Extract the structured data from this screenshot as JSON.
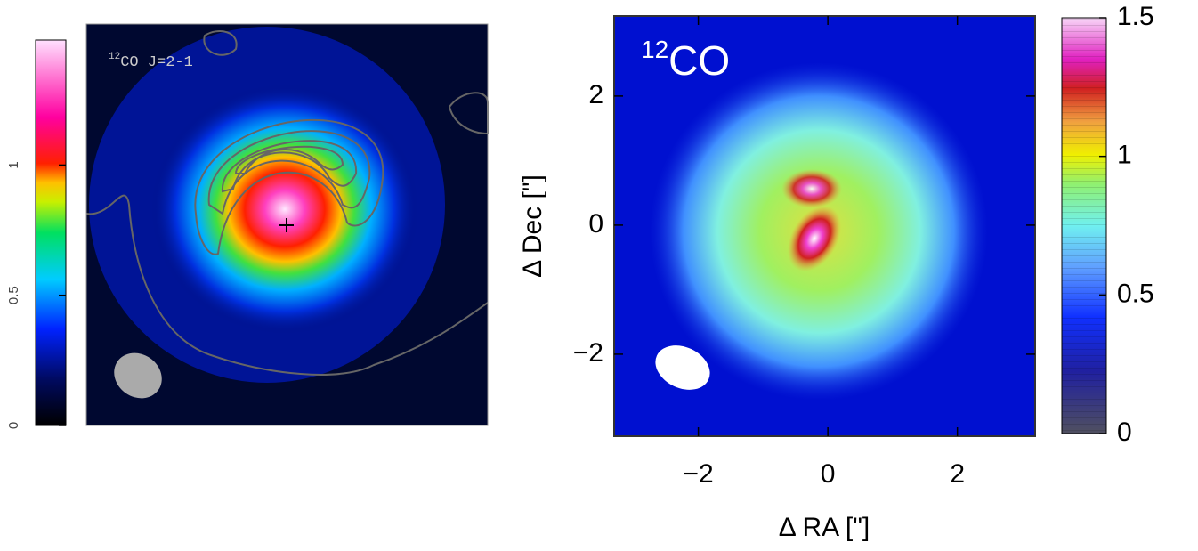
{
  "chart_data": [
    {
      "type": "map",
      "title_sup": "12",
      "title": "CO J=2-1",
      "colorbar": {
        "clim": [
          0,
          1.48
        ],
        "ticks": [
          0,
          0.5,
          1
        ]
      }
    },
    {
      "type": "map",
      "title_sup": "12",
      "title": "CO",
      "xlabel": "Δ RA [\"]",
      "ylabel": "Δ Dec [\"]",
      "xlim": [
        -3.3,
        3.2
      ],
      "ylim": [
        -3.27,
        3.24
      ],
      "xticks": [
        {
          "value": -2,
          "label": "−2"
        },
        0,
        2
      ],
      "yticks": [
        {
          "value": -2,
          "label": "−2"
        },
        0,
        2
      ],
      "colorbar": {
        "clim": [
          0,
          1.5
        ],
        "ticks": [
          0,
          0.5,
          1,
          1.5
        ]
      }
    }
  ]
}
